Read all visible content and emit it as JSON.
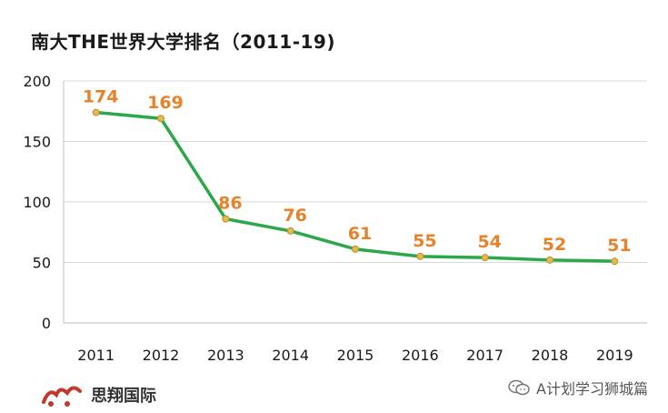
{
  "title": "南大THE世界大学排名（2011-19)",
  "chart_data": {
    "type": "line",
    "title": "南大THE世界大学排名（2011-19)",
    "categories": [
      "2011",
      "2012",
      "2013",
      "2014",
      "2015",
      "2016",
      "2017",
      "2018",
      "2019"
    ],
    "series": [
      {
        "values": [
          174,
          169,
          86,
          76,
          61,
          55,
          54,
          52,
          51
        ]
      }
    ],
    "ylim": [
      0,
      200
    ],
    "yticks": [
      0,
      50,
      100,
      150,
      200
    ],
    "grid": true,
    "colors": {
      "line": "#2ca84a",
      "marker": "#e8b84a",
      "label": "#e8822a",
      "grid": "#d9d9d9",
      "axis": "#bfbfbf"
    }
  },
  "footer": {
    "brand": "思翔国际",
    "wechat_account": "A计划学习狮城篇",
    "icons": {
      "logo": "brand-logo-icon",
      "wechat": "wechat-icon"
    }
  }
}
